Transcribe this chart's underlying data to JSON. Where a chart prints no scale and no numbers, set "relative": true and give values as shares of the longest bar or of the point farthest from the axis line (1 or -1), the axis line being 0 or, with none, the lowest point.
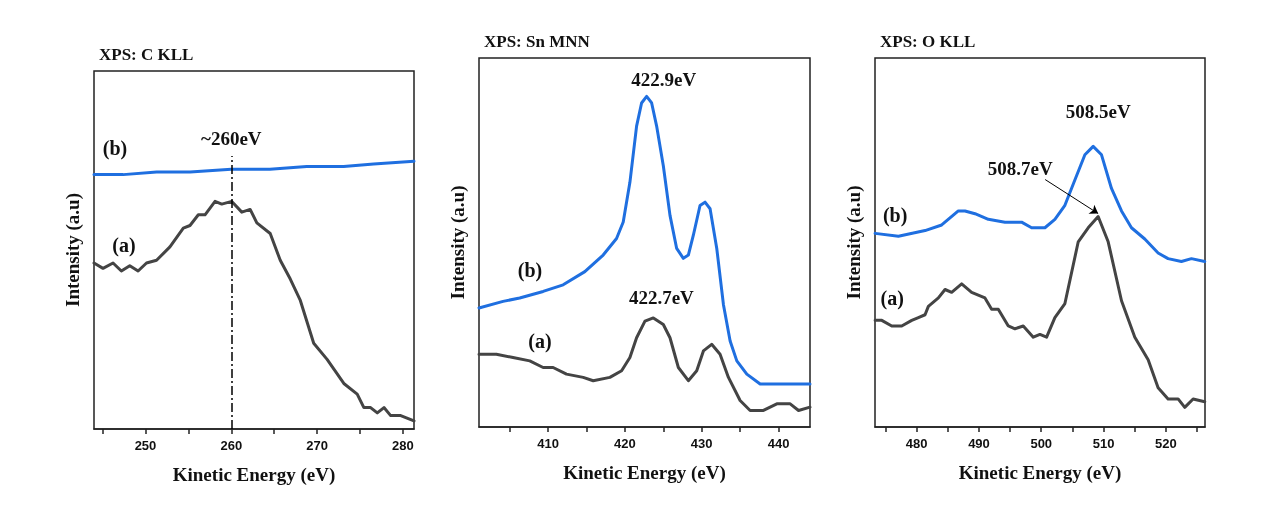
{
  "chart_data": [
    {
      "type": "line",
      "title": "XPS: C KLL",
      "xlabel": "Kinetic Energy (eV)",
      "ylabel": "Intensity (a.u)",
      "relative": true,
      "tick_labels": "x",
      "xlim": [
        244,
        281.3
      ],
      "xticks": [
        {
          "value": 245,
          "label": null
        },
        250,
        {
          "value": 255,
          "label": null
        },
        260,
        {
          "value": 265,
          "label": null
        },
        270,
        {
          "value": 275,
          "label": null
        },
        280
      ],
      "ref_lines": [
        {
          "axis": "x",
          "value": 260,
          "label": "~260eV",
          "line_style": "dashdot",
          "color": "#000000"
        }
      ],
      "series": [
        {
          "name": "(a)",
          "color": "#444444",
          "x": [
            244.0,
            245.05,
            246.22,
            247.19,
            248.17,
            249.14,
            250.12,
            251.29,
            252.85,
            254.41,
            255.19,
            256.16,
            256.94,
            258.11,
            258.89,
            260.06,
            261.23,
            262.2,
            262.98,
            264.54,
            265.71,
            266.88,
            268.05,
            269.61,
            271.17,
            273.12,
            274.68,
            275.46,
            276.24,
            277.02,
            277.8,
            278.58,
            279.75,
            281.3
          ],
          "values": [
            0.62,
            0.6,
            0.62,
            0.59,
            0.61,
            0.59,
            0.62,
            0.63,
            0.68,
            0.75,
            0.76,
            0.8,
            0.8,
            0.85,
            0.84,
            0.85,
            0.81,
            0.82,
            0.77,
            0.73,
            0.63,
            0.56,
            0.48,
            0.32,
            0.26,
            0.17,
            0.13,
            0.08,
            0.08,
            0.06,
            0.08,
            0.05,
            0.05,
            0.03
          ]
        },
        {
          "name": "(b)",
          "color": "#1f6fe0",
          "x": [
            244.0,
            247.4,
            251.3,
            255.2,
            260.0,
            264.5,
            268.8,
            273.1,
            276.6,
            281.3
          ],
          "values": [
            0.95,
            0.95,
            0.96,
            0.96,
            0.97,
            0.97,
            0.98,
            0.98,
            0.99,
            1.0
          ]
        }
      ]
    },
    {
      "type": "line",
      "title": "XPS: Sn MNN",
      "xlabel": "Kinetic Energy (eV)",
      "ylabel": "Intensity (a.u)",
      "relative": true,
      "tick_labels": "x",
      "xlim": [
        401,
        444.1
      ],
      "xticks": [
        {
          "value": 405,
          "label": null
        },
        410,
        {
          "value": 415,
          "label": null
        },
        420,
        {
          "value": 425,
          "label": null
        },
        430,
        {
          "value": 435,
          "label": null
        },
        440
      ],
      "annotations": [
        {
          "text": "422.9eV",
          "x": 422.83,
          "y": 1.0
        },
        {
          "text": "422.7eV",
          "x": 423.7,
          "y": 0.33
        }
      ],
      "series": [
        {
          "name": "(a)",
          "color": "#444444",
          "x": [
            401.0,
            403.26,
            405.43,
            407.61,
            409.35,
            410.65,
            412.39,
            414.57,
            415.87,
            418.04,
            419.57,
            420.65,
            421.52,
            422.61,
            423.7,
            425.0,
            425.87,
            426.96,
            428.26,
            429.35,
            430.22,
            431.3,
            432.39,
            433.48,
            435.0,
            436.3,
            438.04,
            439.78,
            441.52,
            442.61,
            444.1
          ],
          "values": [
            0.22,
            0.22,
            0.21,
            0.2,
            0.18,
            0.18,
            0.16,
            0.15,
            0.14,
            0.15,
            0.17,
            0.21,
            0.27,
            0.32,
            0.33,
            0.31,
            0.27,
            0.18,
            0.14,
            0.17,
            0.23,
            0.25,
            0.22,
            0.15,
            0.08,
            0.05,
            0.05,
            0.07,
            0.07,
            0.05,
            0.06
          ]
        },
        {
          "name": "(b)",
          "color": "#1f6fe0",
          "x": [
            401.0,
            404.13,
            406.3,
            409.35,
            411.96,
            414.78,
            417.17,
            418.91,
            419.78,
            420.65,
            421.52,
            422.17,
            422.83,
            423.48,
            424.13,
            425.0,
            425.87,
            426.74,
            427.61,
            428.26,
            428.91,
            429.78,
            430.43,
            431.09,
            431.96,
            432.83,
            433.7,
            434.57,
            435.87,
            437.61,
            438.91,
            441.09,
            444.1
          ],
          "values": [
            0.36,
            0.38,
            0.39,
            0.41,
            0.43,
            0.47,
            0.52,
            0.57,
            0.62,
            0.74,
            0.91,
            0.98,
            1.0,
            0.98,
            0.91,
            0.79,
            0.64,
            0.54,
            0.51,
            0.52,
            0.58,
            0.67,
            0.68,
            0.66,
            0.54,
            0.37,
            0.26,
            0.2,
            0.16,
            0.13,
            0.13,
            0.13,
            0.13
          ]
        }
      ]
    },
    {
      "type": "line",
      "title": "XPS: O KLL",
      "xlabel": "Kinetic Energy (eV)",
      "ylabel": "Intensity (a.u)",
      "relative": true,
      "tick_labels": "x",
      "xlim": [
        473.3,
        526.3
      ],
      "xticks": [
        {
          "value": 475,
          "label": null
        },
        480,
        {
          "value": 485,
          "label": null
        },
        490,
        {
          "value": 495,
          "label": null
        },
        500,
        {
          "value": 505,
          "label": null
        },
        510,
        {
          "value": 515,
          "label": null
        },
        520,
        {
          "value": 525,
          "label": null
        }
      ],
      "annotations": [
        {
          "text": "508.5eV",
          "x": 508.34,
          "y": 1.0
        },
        {
          "text": "508.7eV",
          "x": 509.14,
          "y": 0.75
        }
      ],
      "series": [
        {
          "name": "(a)",
          "color": "#444444",
          "x": [
            473.32,
            474.39,
            475.99,
            477.59,
            479.2,
            480.27,
            481.34,
            481.87,
            483.48,
            484.55,
            485.61,
            487.22,
            488.82,
            490.96,
            492.03,
            493.1,
            494.71,
            495.78,
            497.11,
            498.72,
            499.79,
            500.86,
            502.19,
            503.8,
            505.94,
            507.54,
            509.14,
            510.75,
            512.89,
            515.03,
            517.17,
            518.77,
            520.37,
            521.98,
            523.05,
            524.39,
            526.26
          ],
          "values": [
            0.38,
            0.38,
            0.36,
            0.36,
            0.38,
            0.39,
            0.4,
            0.43,
            0.46,
            0.49,
            0.48,
            0.51,
            0.48,
            0.46,
            0.42,
            0.42,
            0.36,
            0.35,
            0.36,
            0.32,
            0.33,
            0.32,
            0.39,
            0.44,
            0.66,
            0.71,
            0.75,
            0.66,
            0.45,
            0.32,
            0.24,
            0.14,
            0.1,
            0.1,
            0.07,
            0.1,
            0.09
          ]
        },
        {
          "name": "(b)",
          "color": "#1f6fe0",
          "x": [
            473.32,
            477.06,
            481.34,
            484.01,
            486.68,
            487.75,
            489.36,
            491.5,
            494.17,
            496.84,
            498.45,
            500.59,
            502.19,
            503.8,
            505.4,
            507.01,
            508.34,
            509.68,
            511.28,
            512.89,
            514.49,
            516.63,
            518.77,
            520.37,
            522.51,
            524.12,
            526.26
          ],
          "values": [
            0.69,
            0.68,
            0.7,
            0.72,
            0.77,
            0.77,
            0.76,
            0.74,
            0.73,
            0.73,
            0.71,
            0.71,
            0.74,
            0.79,
            0.88,
            0.97,
            1.0,
            0.97,
            0.85,
            0.77,
            0.71,
            0.67,
            0.62,
            0.6,
            0.59,
            0.6,
            0.59
          ]
        }
      ]
    }
  ]
}
